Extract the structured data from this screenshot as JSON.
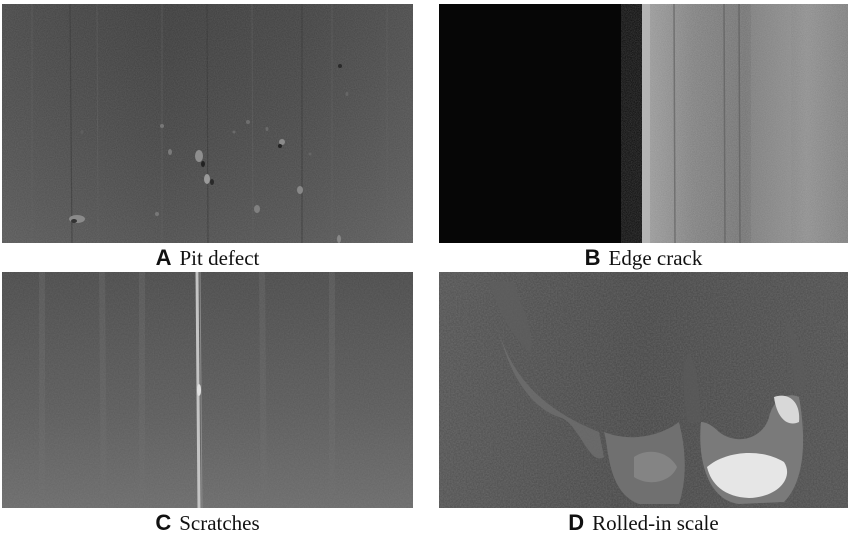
{
  "panels": [
    {
      "letter": "A",
      "label": "Pit defect"
    },
    {
      "letter": "B",
      "label": "Edge crack"
    },
    {
      "letter": "C",
      "label": "Scratches"
    },
    {
      "letter": "D",
      "label": "Rolled-in scale"
    }
  ],
  "colors": {
    "steel_dark": "#3c3c3c",
    "steel_mid": "#555555",
    "steel_light": "#8a8a8a",
    "background_black": "#060606",
    "scale_highlight": "#e6e6e6"
  }
}
